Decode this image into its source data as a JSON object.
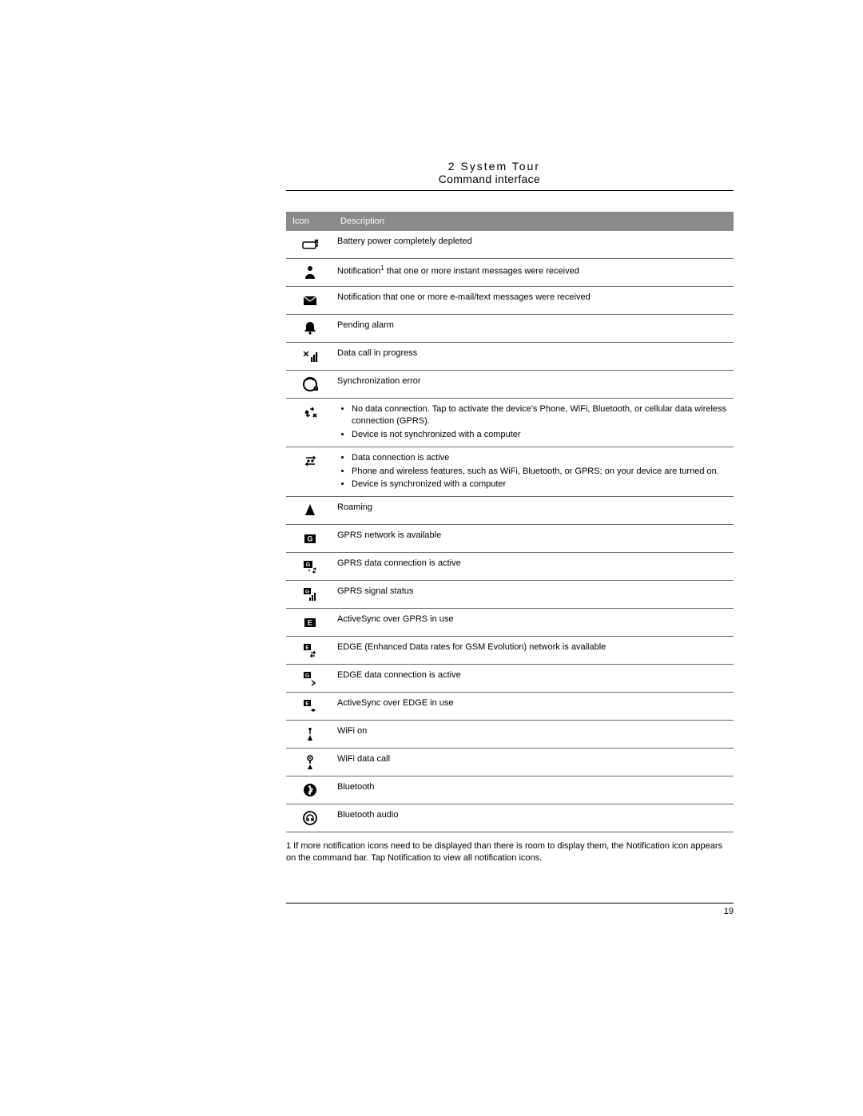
{
  "header": {
    "chapter": "2 System Tour",
    "section": "Command interface"
  },
  "table": {
    "columns": {
      "icon": "Icon",
      "desc": "Description"
    },
    "rows": [
      {
        "icon": "battery-empty-icon",
        "desc": "Battery power completely depleted"
      },
      {
        "icon": "person-icon",
        "desc_html": "Notification<sup>1</sup> that one or more instant messages were received"
      },
      {
        "icon": "envelope-icon",
        "desc": "Notification that one or more e-mail/text messages were received"
      },
      {
        "icon": "bell-icon",
        "desc": "Pending alarm"
      },
      {
        "icon": "data-call-icon",
        "desc": "Data call in progress"
      },
      {
        "icon": "sync-error-icon",
        "desc": "Synchronization error"
      },
      {
        "icon": "no-connection-icon",
        "bullets": [
          "No data connection. Tap to activate the device's Phone, WiFi, Bluetooth, or cellular data wireless connection (GPRS).",
          "Device is not synchronized with a computer"
        ]
      },
      {
        "icon": "data-active-icon",
        "bullets": [
          "Data connection is active",
          "Phone and wireless features, such as WiFi, Bluetooth, or GPRS; on your device are turned on.",
          "Device is synchronized with a computer"
        ]
      },
      {
        "icon": "roaming-icon",
        "desc": "Roaming"
      },
      {
        "icon": "gprs-available-icon",
        "desc": "GPRS network is available"
      },
      {
        "icon": "gprs-active-icon",
        "desc": "GPRS data connection is active"
      },
      {
        "icon": "gprs-signal-icon",
        "desc": "GPRS signal status"
      },
      {
        "icon": "activesync-gprs-icon",
        "desc": "ActiveSync over GPRS in use"
      },
      {
        "icon": "edge-available-icon",
        "desc": "EDGE (Enhanced Data rates for GSM Evolution) network is available"
      },
      {
        "icon": "edge-active-icon",
        "desc": "EDGE data connection is active"
      },
      {
        "icon": "activesync-edge-icon",
        "desc": "ActiveSync over EDGE in use"
      },
      {
        "icon": "wifi-on-icon",
        "desc": "WiFi on"
      },
      {
        "icon": "wifi-data-icon",
        "desc": "WiFi data call"
      },
      {
        "icon": "bluetooth-icon",
        "desc": "Bluetooth"
      },
      {
        "icon": "bluetooth-audio-icon",
        "desc": "Bluetooth audio"
      }
    ]
  },
  "footnote": "1 If more notification icons need to be displayed than there is room to display them, the Notification   icon appears on the command bar. Tap Notification   to view all notification icons.",
  "pageNumber": "19",
  "colors": {
    "header_bg": "#8a8a8a",
    "header_text": "#ffffff",
    "text": "#000000",
    "rule": "#000000",
    "row_border": "#666666"
  }
}
